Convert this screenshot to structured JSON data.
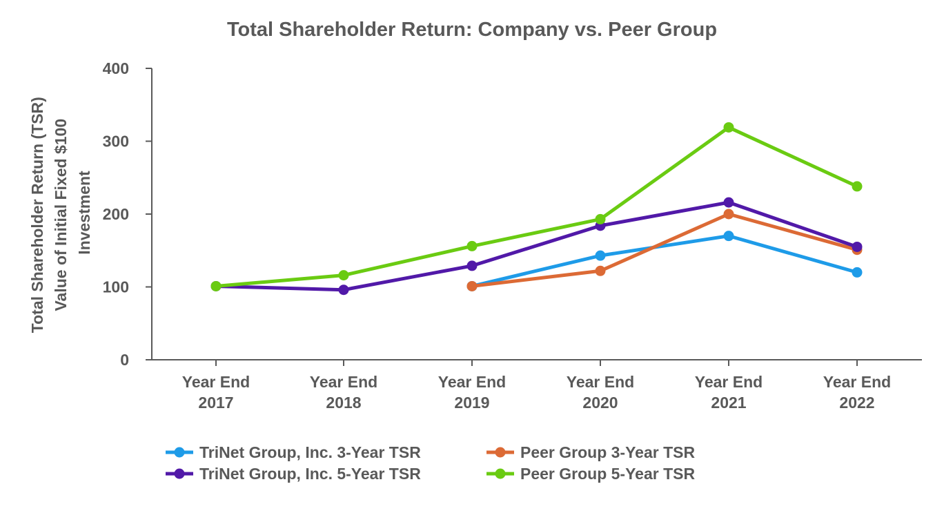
{
  "chart_data": {
    "type": "line",
    "title": "Total Shareholder Return: Company vs. Peer Group",
    "ylabel_lines": [
      "Total Shareholder Return (TSR)",
      "Value of Initial Fixed $100",
      "Investment"
    ],
    "xlabel": "",
    "ylim": [
      0,
      400
    ],
    "yticks": [
      0,
      100,
      200,
      300,
      400
    ],
    "categories": [
      [
        "Year End",
        "2017"
      ],
      [
        "Year End",
        "2018"
      ],
      [
        "Year End",
        "2019"
      ],
      [
        "Year End",
        "2020"
      ],
      [
        "Year End",
        "2021"
      ],
      [
        "Year End",
        "2022"
      ]
    ],
    "grid": false,
    "legend_position": "bottom",
    "series": [
      {
        "name": "TriNet Group, Inc. 3-Year TSR",
        "color": "#1e9be8",
        "values": [
          null,
          null,
          101,
          143,
          170,
          120
        ]
      },
      {
        "name": "Peer Group 3-Year TSR",
        "color": "#dc6a35",
        "values": [
          null,
          null,
          101,
          122,
          200,
          151
        ]
      },
      {
        "name": "TriNet Group, Inc. 5-Year TSR",
        "color": "#5119a8",
        "values": [
          101,
          96,
          129,
          184,
          216,
          155
        ]
      },
      {
        "name": "Peer Group 5-Year TSR",
        "color": "#6acb12",
        "values": [
          101,
          116,
          156,
          193,
          319,
          238
        ]
      }
    ]
  }
}
